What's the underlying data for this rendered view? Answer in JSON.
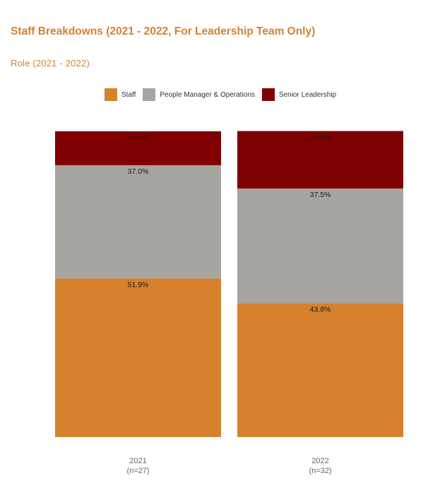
{
  "page": {
    "title": "Staff Breakdowns (2021 - 2022, For Leadership Team Only)",
    "section_title": "Role (2021 - 2022)"
  },
  "colors": {
    "staff": "#d6812e",
    "people_manager": "#a6a5a0",
    "senior_leadership": "#7f0000",
    "title": "#d6812e"
  },
  "legend": {
    "items": [
      {
        "label": "Staff",
        "color": "#d6812e"
      },
      {
        "label": "People Manager & Operations",
        "color": "#a6a5a0"
      },
      {
        "label": "Senior Leadership",
        "color": "#7f0000"
      }
    ],
    "position": "top-center"
  },
  "chart_data": {
    "type": "bar",
    "stacked": true,
    "normalized_to_percent": true,
    "categories": [
      "2021",
      "2022"
    ],
    "category_sublabels": [
      "(n=27)",
      "(n=32)"
    ],
    "series": [
      {
        "name": "Staff",
        "values": [
          51.9,
          43.8
        ],
        "labels": [
          "51.9%",
          "43.8%"
        ],
        "color": "#d6812e"
      },
      {
        "name": "People Manager & Operations",
        "values": [
          37.0,
          37.5
        ],
        "labels": [
          "37.0%",
          "37.5%"
        ],
        "color": "#a6a5a0"
      },
      {
        "name": "Senior Leadership",
        "values": [
          11.1,
          18.8
        ],
        "labels": [
          "11.1%",
          "18.8%"
        ],
        "color": "#7f0000"
      }
    ],
    "ylim": [
      0,
      100
    ],
    "grid": false
  }
}
